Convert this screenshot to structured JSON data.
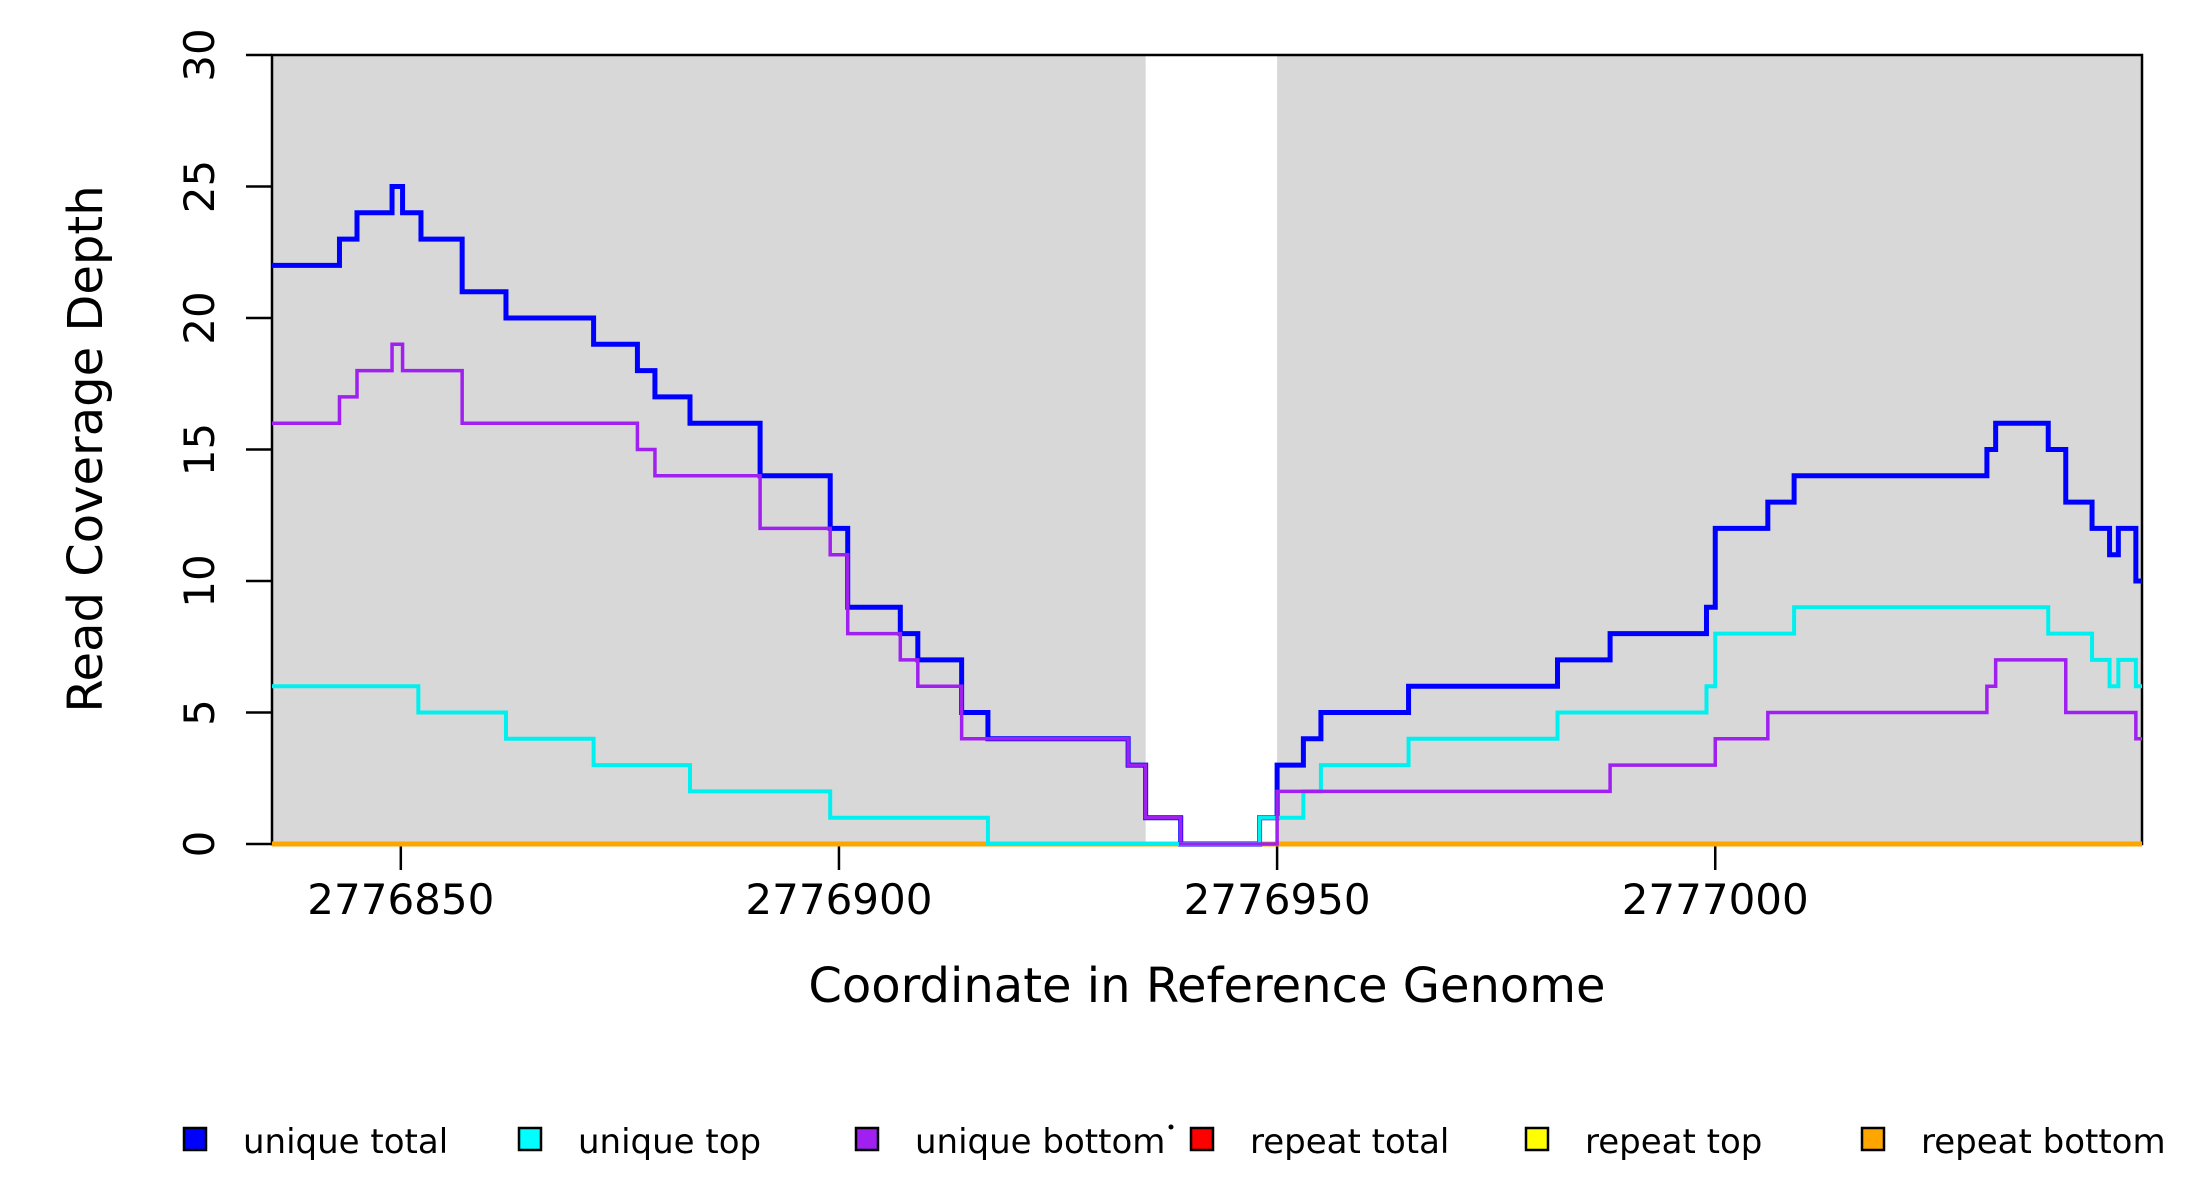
{
  "chart_data": {
    "type": "line",
    "subtype": "step-coverage-plot",
    "title": "",
    "xlabel": "Coordinate in Reference Genome",
    "ylabel": "Read Coverage Depth",
    "x_range": [
      2776835.3,
      2777048.7
    ],
    "y_range": [
      0,
      30
    ],
    "grid": false,
    "background": "#ffffff",
    "shade_color": "#D8D8D8",
    "shaded_regions": [
      [
        2776835.3,
        2776935
      ],
      [
        2776950,
        2777048.7
      ]
    ],
    "axis_color": "#000000",
    "x_ticks": [
      {
        "value": 2776850,
        "label": "2776850"
      },
      {
        "value": 2776900,
        "label": "2776900"
      },
      {
        "value": 2776950,
        "label": "2776950"
      },
      {
        "value": 2777000,
        "label": "2777000"
      }
    ],
    "y_ticks": [
      {
        "value": 0,
        "label": "0"
      },
      {
        "value": 5,
        "label": "5"
      },
      {
        "value": 10,
        "label": "10"
      },
      {
        "value": 15,
        "label": "15"
      },
      {
        "value": 20,
        "label": "20"
      },
      {
        "value": 25,
        "label": "25"
      },
      {
        "value": 30,
        "label": "30"
      }
    ],
    "series": [
      {
        "name": "repeat total",
        "color": "#FF0000",
        "width": 3,
        "points": [
          [
            2776835.3,
            0
          ],
          [
            2777048.7,
            0
          ]
        ]
      },
      {
        "name": "repeat top",
        "color": "#FFFF00",
        "width": 3,
        "points": [
          [
            2776835.3,
            0
          ],
          [
            2777048.7,
            0
          ]
        ]
      },
      {
        "name": "repeat bottom",
        "color": "#FFA500",
        "width": 5,
        "points": [
          [
            2776835.3,
            0
          ],
          [
            2777048.7,
            0
          ]
        ]
      },
      {
        "name": "unique total",
        "color": "#0000FF",
        "width": 5,
        "points": [
          [
            2776835.3,
            22
          ],
          [
            2776843,
            23
          ],
          [
            2776845,
            24
          ],
          [
            2776849,
            25
          ],
          [
            2776850.2,
            24
          ],
          [
            2776852.3,
            23
          ],
          [
            2776857,
            21
          ],
          [
            2776862,
            20
          ],
          [
            2776872,
            19
          ],
          [
            2776877,
            18
          ],
          [
            2776879,
            17
          ],
          [
            2776883,
            16
          ],
          [
            2776891,
            14
          ],
          [
            2776899,
            12
          ],
          [
            2776901,
            9
          ],
          [
            2776907,
            8
          ],
          [
            2776909,
            7
          ],
          [
            2776914,
            5
          ],
          [
            2776917,
            4
          ],
          [
            2776933,
            3
          ],
          [
            2776935,
            1
          ],
          [
            2776939,
            0
          ],
          [
            2776948,
            1
          ],
          [
            2776950,
            3
          ],
          [
            2776953,
            4
          ],
          [
            2776955,
            5
          ],
          [
            2776965,
            6
          ],
          [
            2776982,
            7
          ],
          [
            2776988,
            8
          ],
          [
            2776999,
            9
          ],
          [
            2777000,
            12
          ],
          [
            2777006,
            13
          ],
          [
            2777009,
            14
          ],
          [
            2777031,
            15
          ],
          [
            2777032,
            16
          ],
          [
            2777038,
            15
          ],
          [
            2777040,
            13
          ],
          [
            2777043,
            12
          ],
          [
            2777045,
            11
          ],
          [
            2777046,
            12
          ],
          [
            2777048,
            10
          ],
          [
            2777048.7,
            10
          ]
        ]
      },
      {
        "name": "unique top",
        "color": "#00F0F0",
        "width": 4,
        "points": [
          [
            2776835.3,
            6
          ],
          [
            2776852,
            5
          ],
          [
            2776862,
            4
          ],
          [
            2776872,
            3
          ],
          [
            2776883,
            2
          ],
          [
            2776899,
            1
          ],
          [
            2776917,
            0
          ],
          [
            2776948,
            1
          ],
          [
            2776953,
            2
          ],
          [
            2776955,
            3
          ],
          [
            2776965,
            4
          ],
          [
            2776982,
            5
          ],
          [
            2776999,
            6
          ],
          [
            2777000,
            8
          ],
          [
            2777009,
            9
          ],
          [
            2777038,
            8
          ],
          [
            2777043,
            7
          ],
          [
            2777045,
            6
          ],
          [
            2777046,
            7
          ],
          [
            2777048,
            6
          ],
          [
            2777048.7,
            6
          ]
        ]
      },
      {
        "name": "unique bottom",
        "color": "#A020F0",
        "width": 3.5,
        "points": [
          [
            2776835.3,
            16
          ],
          [
            2776843,
            17
          ],
          [
            2776845,
            18
          ],
          [
            2776849,
            19
          ],
          [
            2776850.2,
            18
          ],
          [
            2776857,
            16
          ],
          [
            2776877,
            15
          ],
          [
            2776879,
            14
          ],
          [
            2776891,
            12
          ],
          [
            2776899,
            11
          ],
          [
            2776901,
            8
          ],
          [
            2776907,
            7
          ],
          [
            2776909,
            6
          ],
          [
            2776914,
            4
          ],
          [
            2776933,
            3
          ],
          [
            2776935,
            1
          ],
          [
            2776939,
            0
          ],
          [
            2776950,
            2
          ],
          [
            2776988,
            3
          ],
          [
            2777000,
            4
          ],
          [
            2777006,
            5
          ],
          [
            2777031,
            6
          ],
          [
            2777032,
            7
          ],
          [
            2777040,
            5
          ],
          [
            2777048,
            4
          ],
          [
            2777048.7,
            4
          ]
        ]
      }
    ]
  },
  "legend": {
    "position": "bottom",
    "items": [
      {
        "label": "unique total",
        "color": "#0000FF"
      },
      {
        "label": "unique top",
        "color": "#00FFFF"
      },
      {
        "label": "unique bottom",
        "color": "#A020F0"
      },
      {
        "label": "repeat total",
        "color": "#FF0000"
      },
      {
        "label": "repeat top",
        "color": "#FFFF00"
      },
      {
        "label": "repeat bottom",
        "color": "#FFA500"
      }
    ]
  }
}
